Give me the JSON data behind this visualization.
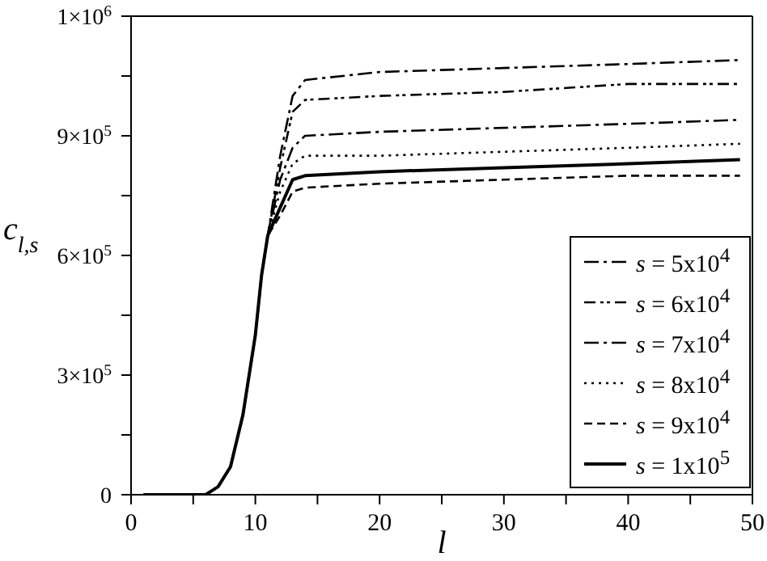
{
  "chart_data": {
    "type": "line",
    "xlabel": "l",
    "ylabel": "c$_{l,s}$",
    "x": [
      1,
      5,
      6,
      7,
      8,
      9,
      10,
      10.5,
      11,
      12,
      13,
      14,
      20,
      30,
      40,
      49
    ],
    "series": [
      {
        "name": "s = 5x10$^{4}$",
        "color": "#000000",
        "line_style": "dashdot",
        "values": [
          0,
          0,
          0,
          20000,
          70000,
          200000,
          400000,
          550000,
          650000,
          850000,
          1000000,
          1040000,
          1060000,
          1070000,
          1080000,
          1090000
        ]
      },
      {
        "name": "s = 6x10$^{4}$",
        "color": "#000000",
        "line_style": "dashdotdot",
        "values": [
          0,
          0,
          0,
          20000,
          70000,
          200000,
          400000,
          550000,
          650000,
          820000,
          960000,
          990000,
          1000000,
          1010000,
          1030000,
          1030000
        ]
      },
      {
        "name": "s = 7x10$^{4}$",
        "color": "#000000",
        "line_style": "dashdot",
        "values": [
          0,
          0,
          0,
          20000,
          70000,
          200000,
          400000,
          550000,
          650000,
          790000,
          870000,
          900000,
          910000,
          920000,
          930000,
          940000
        ]
      },
      {
        "name": "s = 8x10$^{4}$",
        "color": "#000000",
        "line_style": "dotted",
        "values": [
          0,
          0,
          0,
          20000,
          70000,
          200000,
          400000,
          550000,
          650000,
          760000,
          830000,
          850000,
          850000,
          860000,
          870000,
          880000
        ]
      },
      {
        "name": "s = 9x10$^{4}$",
        "color": "#000000",
        "line_style": "dashed",
        "values": [
          0,
          0,
          0,
          20000,
          70000,
          200000,
          400000,
          550000,
          650000,
          700000,
          760000,
          770000,
          780000,
          790000,
          800000,
          800000
        ]
      },
      {
        "name": "s = 1x10$^{5}$",
        "color": "#000000",
        "line_style": "solid",
        "values": [
          0,
          0,
          0,
          20000,
          70000,
          200000,
          400000,
          550000,
          650000,
          720000,
          790000,
          800000,
          810000,
          820000,
          830000,
          840000
        ]
      }
    ],
    "xlim": [
      0,
      50
    ],
    "xticks": [
      0,
      {
        "value": 5,
        "label": null
      },
      10,
      {
        "value": 15,
        "label": null
      },
      20,
      {
        "value": 25,
        "label": null
      },
      30,
      {
        "value": 35,
        "label": null
      },
      40,
      {
        "value": 45,
        "label": null
      },
      50
    ],
    "ylim": [
      0,
      1200000
    ],
    "yticks": [
      {
        "value": 0,
        "label": "0"
      },
      {
        "value": 150000,
        "label": null
      },
      {
        "value": 300000,
        "label": "3×10$^{5}$"
      },
      {
        "value": 450000,
        "label": null
      },
      {
        "value": 600000,
        "label": "6×10$^{5}$"
      },
      {
        "value": 750000,
        "label": null
      },
      {
        "value": 900000,
        "label": "9×10$^{5}$"
      },
      {
        "value": 1050000,
        "label": null
      },
      {
        "value": 1200000,
        "label": "1×10$^{6}$"
      }
    ],
    "grid": false,
    "legend": "bottom right",
    "marker": "none"
  }
}
